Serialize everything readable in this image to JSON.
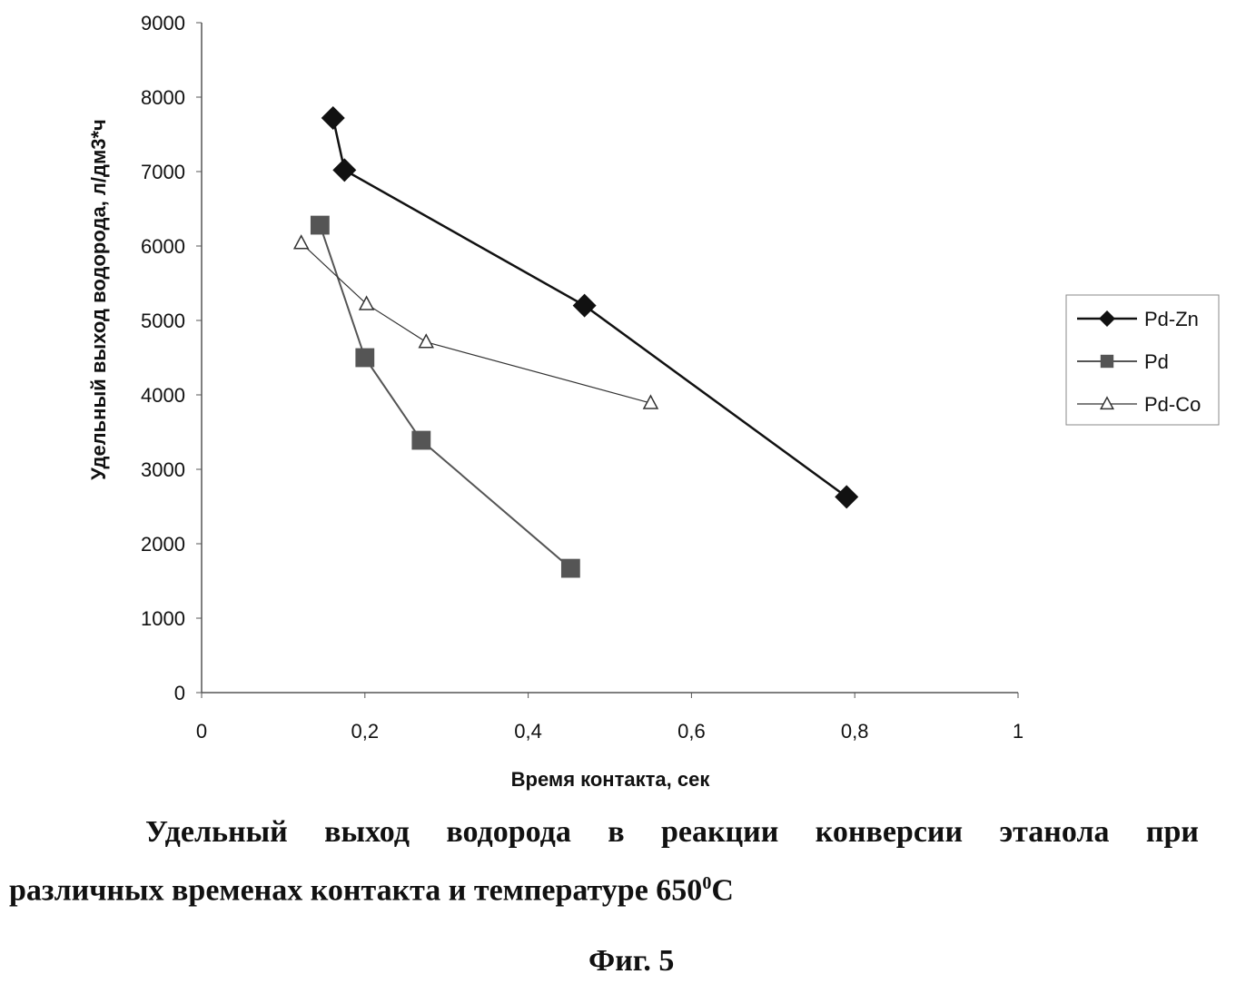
{
  "chart_data": {
    "type": "line",
    "xlabel": "Время контакта, сек",
    "ylabel": "Удельный выход водорода, л/дм3*ч",
    "xlim": [
      0,
      1
    ],
    "ylim": [
      0,
      9000
    ],
    "xticks": [
      "0",
      "0,2",
      "0,4",
      "0,6",
      "0,8",
      "1"
    ],
    "xtick_values": [
      0,
      0.2,
      0.4,
      0.6,
      0.8,
      1
    ],
    "yticks": [
      "0",
      "1000",
      "2000",
      "3000",
      "4000",
      "5000",
      "6000",
      "7000",
      "8000",
      "9000"
    ],
    "ytick_values": [
      0,
      1000,
      2000,
      3000,
      4000,
      5000,
      6000,
      7000,
      8000,
      9000
    ],
    "grid": false,
    "legend_position": "right",
    "series": [
      {
        "name": "Pd-Zn",
        "marker": "diamond",
        "color": "#111111",
        "x": [
          0.161,
          0.175,
          0.469,
          0.79
        ],
        "y": [
          7720,
          7020,
          5200,
          2630
        ]
      },
      {
        "name": "Pd",
        "marker": "square",
        "color": "#555555",
        "x": [
          0.145,
          0.2,
          0.269,
          0.452
        ],
        "y": [
          6280,
          4500,
          3390,
          1670
        ]
      },
      {
        "name": "Pd-Co",
        "marker": "triangle",
        "color": "#333333",
        "x": [
          0.122,
          0.202,
          0.275,
          0.55
        ],
        "y": [
          6040,
          5220,
          4710,
          3890
        ]
      }
    ]
  },
  "caption": {
    "line1": "Удельный выход водорода в реакции конверсии этанола при",
    "line2": "различных временах контакта и температуре 650",
    "degree": "0",
    "unit": "C",
    "figure": "Фиг. 5"
  }
}
